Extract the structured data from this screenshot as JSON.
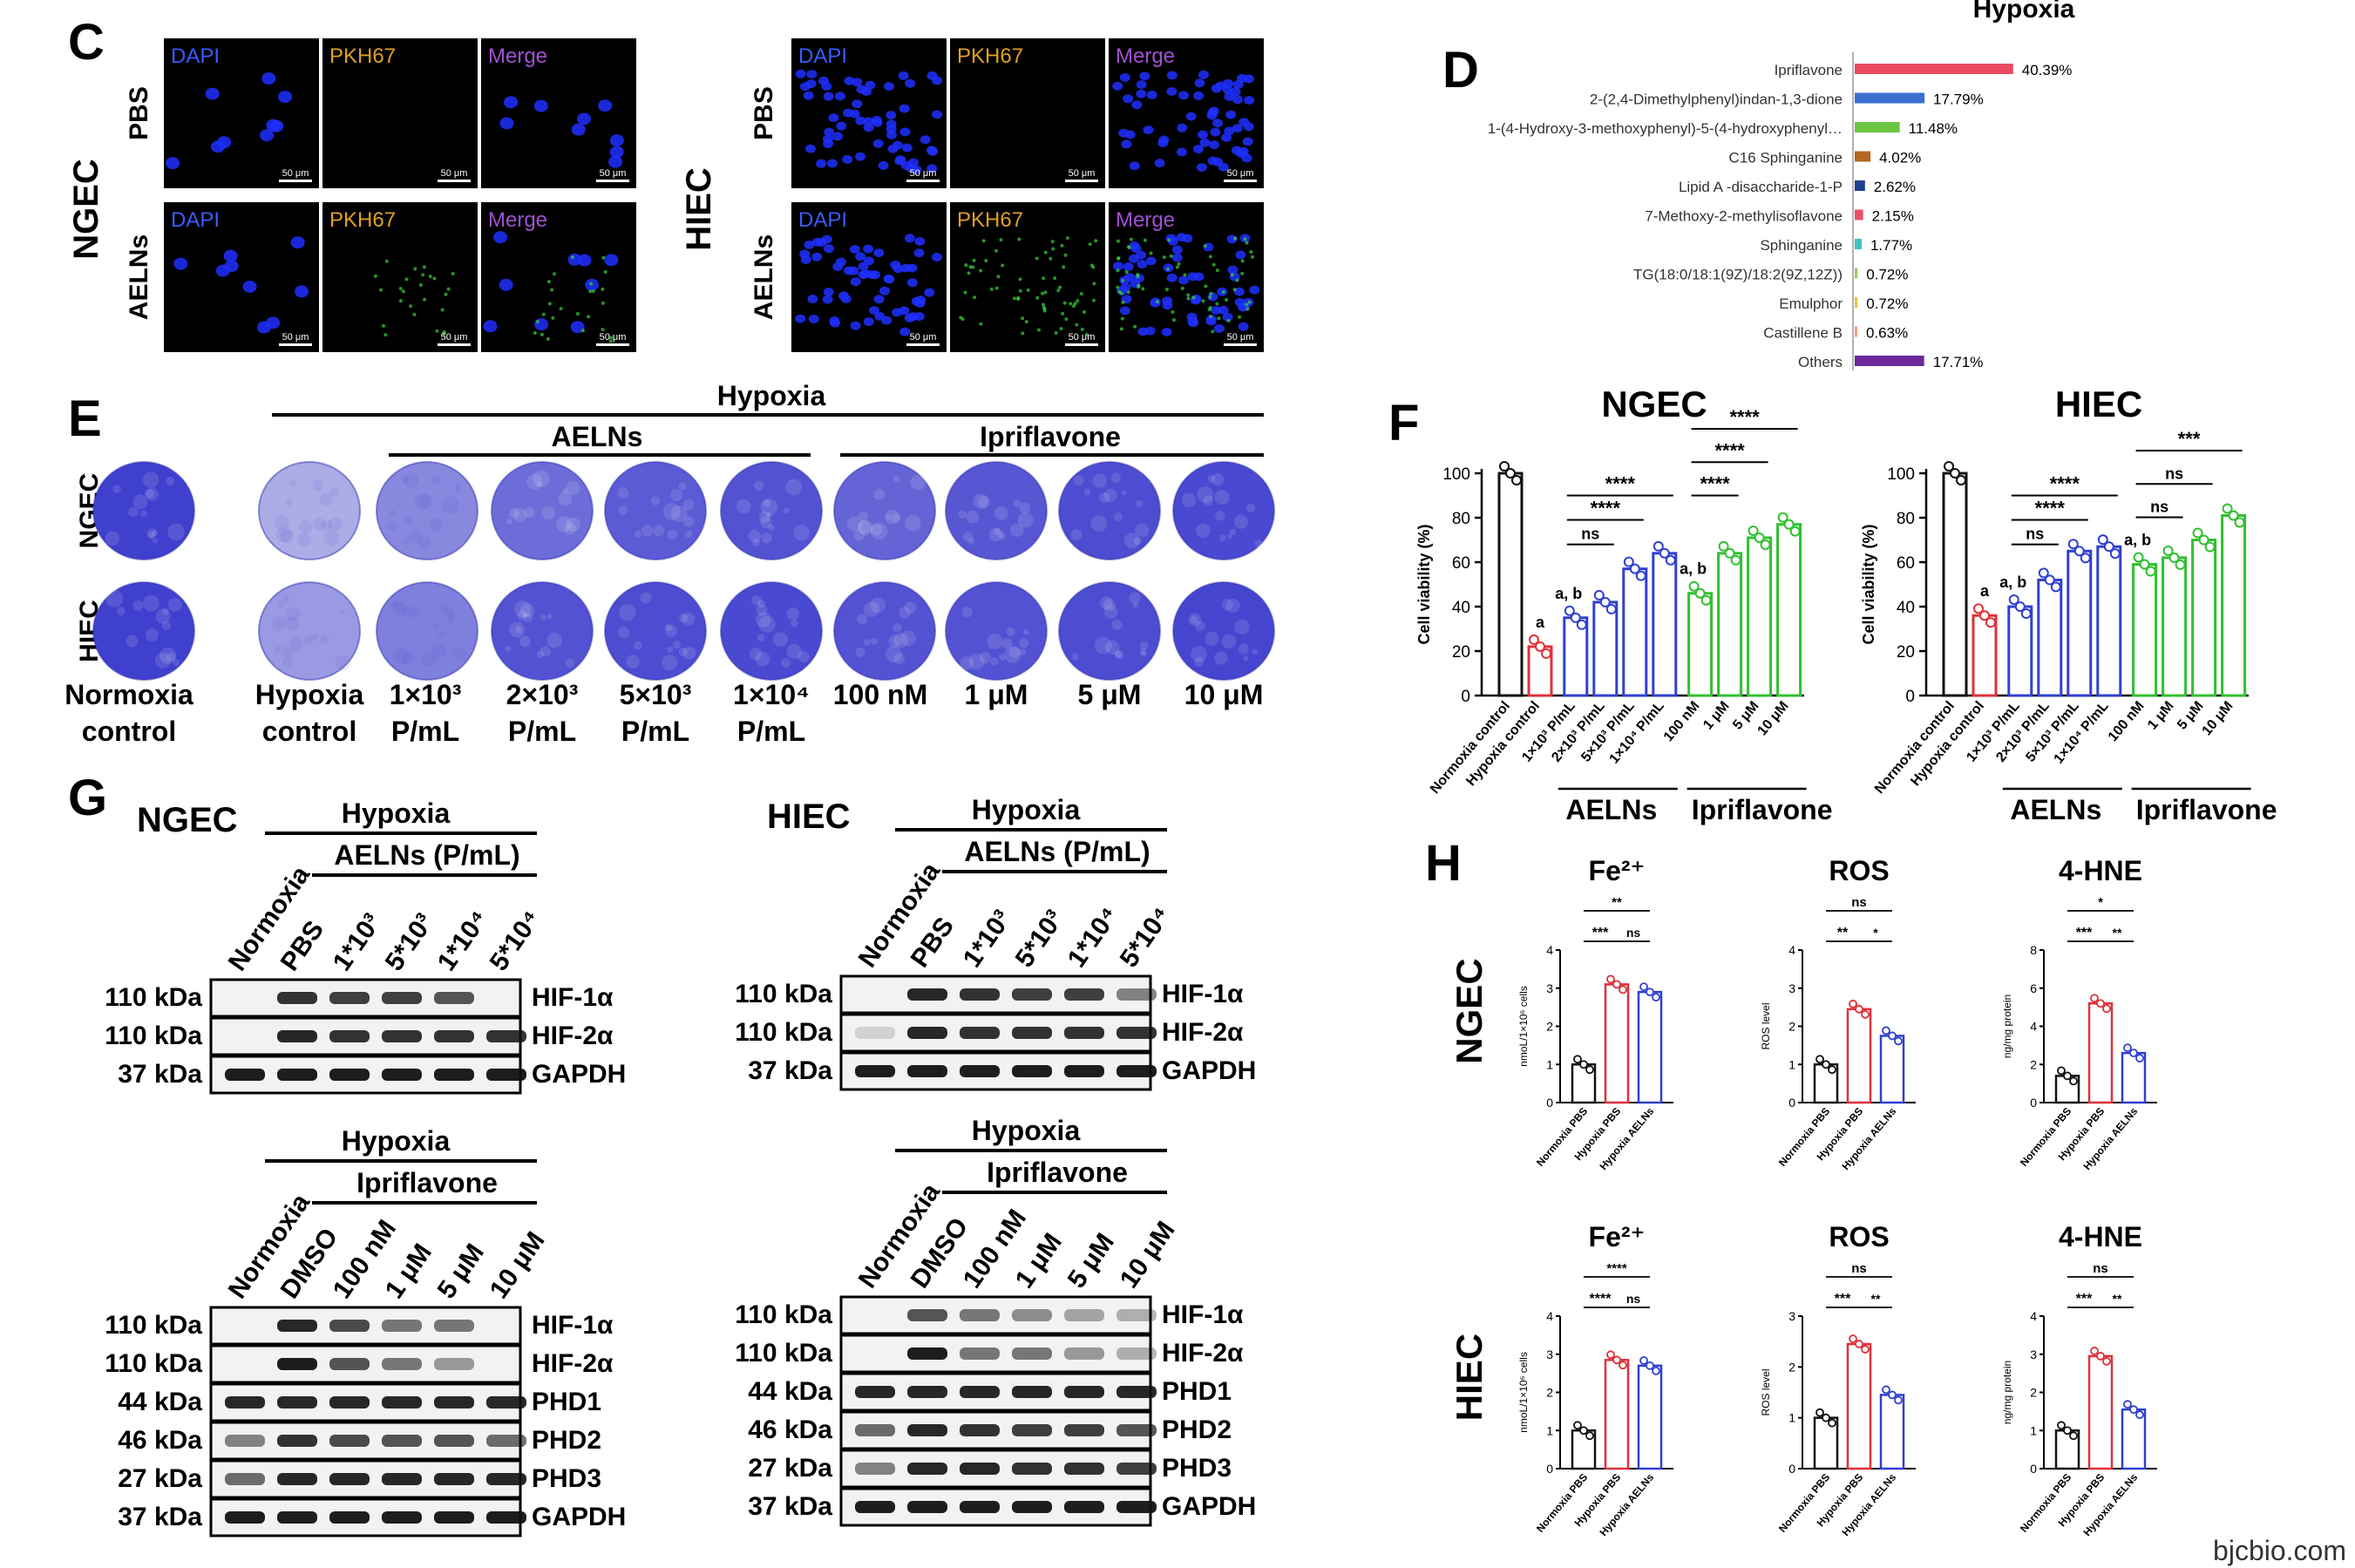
{
  "colors": {
    "red": "#e0303a",
    "blue": "#3040d0",
    "green": "#30c030",
    "black": "#111111",
    "dapi": "#3a5cff",
    "pkh": "#e0a020",
    "merge": "#a050d0",
    "stain": "#3535c8"
  },
  "panel_c": {
    "letter": "C",
    "left_cell": "NGEC",
    "right_cell": "HIEC",
    "rows": [
      "PBS",
      "AELNs"
    ],
    "channels": [
      "DAPI",
      "PKH67",
      "Merge"
    ],
    "scalebar": "50 μm"
  },
  "panel_d": {
    "letter": "D",
    "title": "Hypoxia",
    "items": [
      {
        "name": "Ipriflavone",
        "pct": "40.39%",
        "value": 40.39,
        "color": "#e84a5f"
      },
      {
        "name": "2-(2,4-Dimethylphenyl)indan-1,3-dione",
        "pct": "17.79%",
        "value": 17.79,
        "color": "#3a6fd0"
      },
      {
        "name": "1-(4-Hydroxy-3-methoxyphenyl)-5-(4-hydroxyphenyl…",
        "pct": "11.48%",
        "value": 11.48,
        "color": "#6cc644"
      },
      {
        "name": "C16 Sphinganine",
        "pct": "4.02%",
        "value": 4.02,
        "color": "#b5651d"
      },
      {
        "name": "Lipid A -disaccharide-1-P",
        "pct": "2.62%",
        "value": 2.62,
        "color": "#1f3f8f"
      },
      {
        "name": "7-Methoxy-2-methylisoflavone",
        "pct": "2.15%",
        "value": 2.15,
        "color": "#e8506a"
      },
      {
        "name": "Sphinganine",
        "pct": "1.77%",
        "value": 1.77,
        "color": "#40c0c0"
      },
      {
        "name": "TG(18:0/18:1(9Z)/18:2(9Z,12Z))",
        "pct": "0.72%",
        "value": 0.72,
        "color": "#9acd60"
      },
      {
        "name": "Emulphor",
        "pct": "0.72%",
        "value": 0.72,
        "color": "#f0c040"
      },
      {
        "name": "Castillene B",
        "pct": "0.63%",
        "value": 0.63,
        "color": "#f0a080"
      },
      {
        "name": "Others",
        "pct": "17.71%",
        "value": 17.71,
        "color": "#6a2a9a"
      }
    ]
  },
  "panel_e": {
    "letter": "E",
    "hypoxia": "Hypoxia",
    "aelns": "AELNs",
    "ipriflavone": "Ipriflavone",
    "rows": [
      "NGEC",
      "HIEC"
    ],
    "labels": [
      [
        "Normoxia",
        "control"
      ],
      [
        "Hypoxia",
        "control"
      ],
      [
        "1×10³",
        "P/mL"
      ],
      [
        "2×10³",
        "P/mL"
      ],
      [
        "5×10³",
        "P/mL"
      ],
      [
        "1×10⁴",
        "P/mL"
      ],
      [
        "100 nM",
        ""
      ],
      [
        "1 μM",
        ""
      ],
      [
        "5 μM",
        ""
      ],
      [
        "10 μM",
        ""
      ]
    ],
    "intensity_ngec": [
      0.95,
      0.35,
      0.55,
      0.7,
      0.8,
      0.85,
      0.75,
      0.82,
      0.88,
      0.9
    ],
    "intensity_hiec": [
      0.95,
      0.45,
      0.6,
      0.85,
      0.88,
      0.9,
      0.85,
      0.85,
      0.88,
      0.92
    ]
  },
  "chart_data": [
    {
      "type": "bar",
      "panel": "F",
      "title": "NGEC",
      "ylabel": "Cell viability (%)",
      "ylim": [
        0,
        100
      ],
      "yticks": [
        0,
        20,
        40,
        60,
        80,
        100
      ],
      "categories": [
        "Normoxia control",
        "Hypoxia control",
        "1×10³ P/mL",
        "2×10³ P/mL",
        "5×10³ P/mL",
        "1×10⁴ P/mL",
        "100 nM",
        "1 μM",
        "5 μM",
        "10 μM"
      ],
      "values": [
        100,
        22,
        35,
        42,
        57,
        64,
        46,
        64,
        71,
        77
      ],
      "colors": [
        "#111111",
        "#e0303a",
        "#3040d0",
        "#3040d0",
        "#3040d0",
        "#3040d0",
        "#30c030",
        "#30c030",
        "#30c030",
        "#30c030"
      ],
      "group_labels": [
        "AELNs",
        "Ipriflavone"
      ],
      "annotations": [
        "a",
        "a, b",
        "a, b",
        "****",
        "****",
        "ns",
        "****",
        "****",
        "****"
      ]
    },
    {
      "type": "bar",
      "panel": "F",
      "title": "HIEC",
      "ylabel": "Cell viability (%)",
      "ylim": [
        0,
        100
      ],
      "yticks": [
        0,
        20,
        40,
        60,
        80,
        100
      ],
      "categories": [
        "Normoxia control",
        "Hypoxia control",
        "1×10³ P/mL",
        "2×10³ P/mL",
        "5×10³ P/mL",
        "1×10⁴ P/mL",
        "100 nM",
        "1 μM",
        "5 μM",
        "10 μM"
      ],
      "values": [
        100,
        36,
        40,
        52,
        65,
        67,
        59,
        62,
        70,
        81
      ],
      "colors": [
        "#111111",
        "#e0303a",
        "#3040d0",
        "#3040d0",
        "#3040d0",
        "#3040d0",
        "#30c030",
        "#30c030",
        "#30c030",
        "#30c030"
      ],
      "group_labels": [
        "AELNs",
        "Ipriflavone"
      ],
      "annotations": [
        "a",
        "a, b",
        "a, b",
        "****",
        "****",
        "ns",
        "***",
        "ns",
        "ns"
      ]
    },
    {
      "type": "bar",
      "panel": "H",
      "row": "NGEC",
      "title": "Fe²⁺",
      "ylabel": "nmoL/1×10⁶ cells",
      "ylim": [
        0,
        4
      ],
      "yticks": [
        0,
        1,
        2,
        3,
        4
      ],
      "categories": [
        "Normoxia PBS",
        "Hypoxia PBS",
        "Hypoxia AELNs"
      ],
      "values": [
        1.0,
        3.1,
        2.9
      ],
      "sig": [
        "***",
        "ns",
        "**"
      ]
    },
    {
      "type": "bar",
      "panel": "H",
      "row": "NGEC",
      "title": "ROS",
      "ylabel": "ROS level",
      "ylim": [
        0,
        4
      ],
      "yticks": [
        0,
        1,
        2,
        3,
        4
      ],
      "categories": [
        "Normoxia PBS",
        "Hypoxia PBS",
        "Hypoxia AELNs"
      ],
      "values": [
        1.0,
        2.45,
        1.75
      ],
      "sig": [
        "**",
        "*",
        "ns"
      ]
    },
    {
      "type": "bar",
      "panel": "H",
      "row": "NGEC",
      "title": "4-HNE",
      "ylabel": "ng/mg protein",
      "ylim": [
        0,
        8
      ],
      "yticks": [
        0,
        2,
        4,
        6,
        8
      ],
      "categories": [
        "Normoxia PBS",
        "Hypoxia PBS",
        "Hypoxia AELNs"
      ],
      "values": [
        1.4,
        5.2,
        2.6
      ],
      "sig": [
        "***",
        "**",
        "*"
      ]
    },
    {
      "type": "bar",
      "panel": "H",
      "row": "HIEC",
      "title": "Fe²⁺",
      "ylabel": "nmoL/1×10⁶ cells",
      "ylim": [
        0,
        4
      ],
      "yticks": [
        0,
        1,
        2,
        3,
        4
      ],
      "categories": [
        "Normoxia PBS",
        "Hypoxia PBS",
        "Hypoxia AELNs"
      ],
      "values": [
        1.0,
        2.85,
        2.7
      ],
      "sig": [
        "****",
        "ns",
        "****"
      ]
    },
    {
      "type": "bar",
      "panel": "H",
      "row": "HIEC",
      "title": "ROS",
      "ylabel": "ROS level",
      "ylim": [
        0,
        3
      ],
      "yticks": [
        0,
        1,
        2,
        3
      ],
      "categories": [
        "Normoxia PBS",
        "Hypoxia PBS",
        "Hypoxia AELNs"
      ],
      "values": [
        1.0,
        2.45,
        1.45
      ],
      "sig": [
        "***",
        "**",
        "ns"
      ]
    },
    {
      "type": "bar",
      "panel": "H",
      "row": "HIEC",
      "title": "4-HNE",
      "ylabel": "ng/mg protein",
      "ylim": [
        0,
        4
      ],
      "yticks": [
        0,
        1,
        2,
        3,
        4
      ],
      "categories": [
        "Normoxia PBS",
        "Hypoxia PBS",
        "Hypoxia AELNs"
      ],
      "values": [
        1.0,
        2.95,
        1.55
      ],
      "sig": [
        "***",
        "**",
        "ns"
      ]
    }
  ],
  "panel_f": {
    "letter": "F",
    "aelns": "AELNs",
    "ipriflavone": "Ipriflavone"
  },
  "panel_h": {
    "letter": "H",
    "rows": [
      "NGEC",
      "HIEC"
    ]
  },
  "panel_g": {
    "letter": "G",
    "hypoxia": "Hypoxia",
    "aelns_units": "AELNs (P/mL)",
    "ipriflavone": "Ipriflavone",
    "ngec": "NGEC",
    "hiec": "HIEC",
    "top_lanes": [
      "Normoxia",
      "PBS",
      "1*10³",
      "5*10³",
      "1*10⁴",
      "5*10⁴"
    ],
    "top_mw": [
      "110 kDa",
      "110 kDa",
      "37 kDa"
    ],
    "top_bands": [
      "HIF-1α",
      "HIF-2α",
      "GAPDH"
    ],
    "bottom_lanes": [
      "Normoxia",
      "DMSO",
      "100 nM",
      "1 μM",
      "5 μM",
      "10 μM"
    ],
    "bottom_mw": [
      "110 kDa",
      "110 kDa",
      "44 kDa",
      "46 kDa",
      "27 kDa",
      "37 kDa"
    ],
    "bottom_bands": [
      "HIF-1α",
      "HIF-2α",
      "PHD1",
      "PHD2",
      "PHD3",
      "GAPDH"
    ]
  },
  "watermark": "bjcbio.com"
}
